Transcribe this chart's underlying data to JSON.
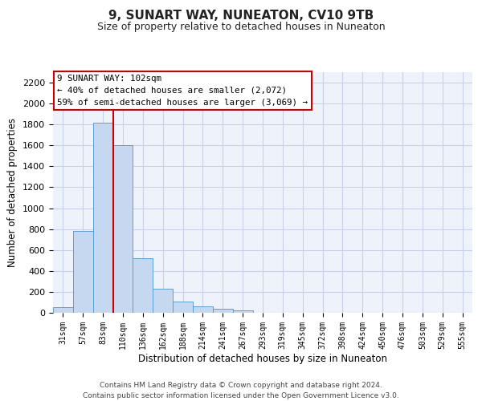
{
  "title": "9, SUNART WAY, NUNEATON, CV10 9TB",
  "subtitle": "Size of property relative to detached houses in Nuneaton",
  "xlabel": "Distribution of detached houses by size in Nuneaton",
  "ylabel": "Number of detached properties",
  "bar_labels": [
    "31sqm",
    "57sqm",
    "83sqm",
    "110sqm",
    "136sqm",
    "162sqm",
    "188sqm",
    "214sqm",
    "241sqm",
    "267sqm",
    "293sqm",
    "319sqm",
    "345sqm",
    "372sqm",
    "398sqm",
    "424sqm",
    "450sqm",
    "476sqm",
    "503sqm",
    "529sqm",
    "555sqm"
  ],
  "bar_values": [
    50,
    780,
    1820,
    1600,
    520,
    230,
    105,
    60,
    35,
    20,
    0,
    0,
    0,
    0,
    0,
    0,
    0,
    0,
    0,
    0,
    0
  ],
  "bar_color": "#c5d8f0",
  "bar_edge_color": "#5a9fd4",
  "ylim": [
    0,
    2300
  ],
  "yticks": [
    0,
    200,
    400,
    600,
    800,
    1000,
    1200,
    1400,
    1600,
    1800,
    2000,
    2200
  ],
  "annotation_text": "9 SUNART WAY: 102sqm\n← 40% of detached houses are smaller (2,072)\n59% of semi-detached houses are larger (3,069) →",
  "annotation_box_color": "#ffffff",
  "annotation_border_color": "#cc0000",
  "footer_text": "Contains HM Land Registry data © Crown copyright and database right 2024.\nContains public sector information licensed under the Open Government Licence v3.0.",
  "background_color": "#eef2fb",
  "grid_color": "#c8cfe8",
  "red_line_index": 3
}
